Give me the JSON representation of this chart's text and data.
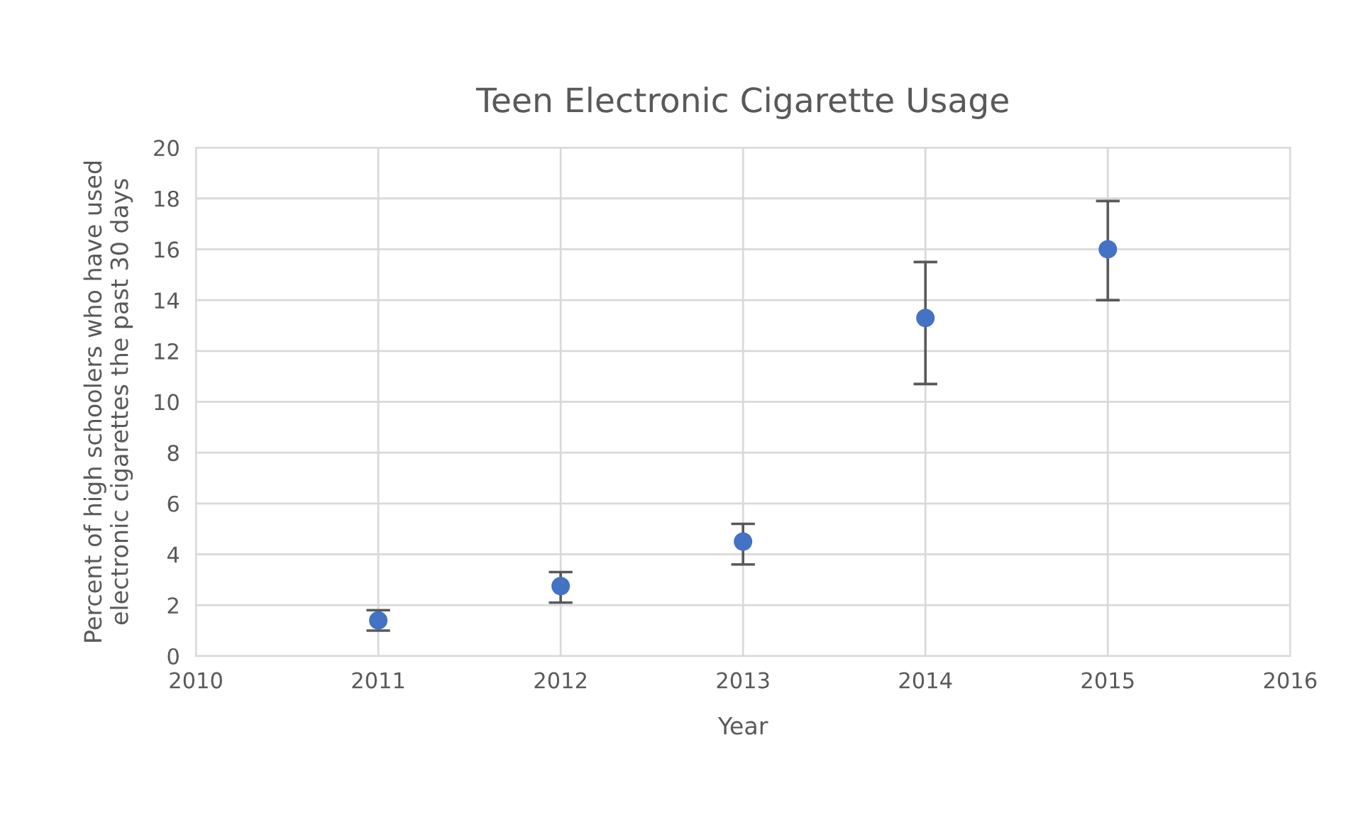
{
  "chart_data": {
    "type": "scatter",
    "title": "Teen Electronic Cigarette Usage",
    "xlabel": "Year",
    "ylabel": "Percent of high schoolers who have used\nelectronic cigarettes the past 30 days",
    "x": [
      2011,
      2012,
      2013,
      2014,
      2015
    ],
    "series": [
      {
        "color": "#4472c4",
        "values": [
          1.4,
          2.75,
          4.5,
          13.3,
          16.0
        ],
        "errors": [
          [
            1.0,
            1.8
          ],
          [
            2.1,
            3.3
          ],
          [
            3.6,
            5.2
          ],
          [
            10.7,
            15.5
          ],
          [
            14.0,
            17.9
          ]
        ]
      }
    ],
    "xlim": [
      2010,
      2016
    ],
    "xticks": [
      2010,
      2011,
      2012,
      2013,
      2014,
      2015,
      2016
    ],
    "ylim": [
      0,
      20
    ],
    "yticks": [
      0,
      2,
      4,
      6,
      8,
      10,
      12,
      14,
      16,
      18,
      20
    ],
    "grid": true,
    "marker": "circle"
  }
}
